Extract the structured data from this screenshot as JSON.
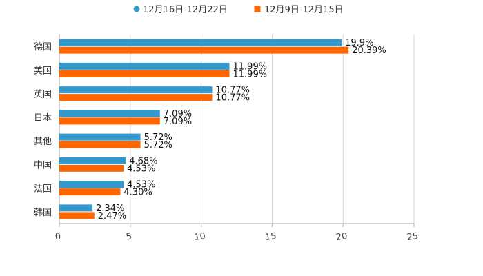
{
  "chart_data": {
    "type": "bar",
    "orientation": "horizontal",
    "categories": [
      "德国",
      "美国",
      "英国",
      "日本",
      "其他",
      "中国",
      "法国",
      "韩国"
    ],
    "series": [
      {
        "name": "12月16日-12月22日",
        "color": "#3399cc",
        "values": [
          19.9,
          11.99,
          10.77,
          7.09,
          5.72,
          4.68,
          4.53,
          2.34
        ],
        "labels": [
          "19.9%",
          "11.99%",
          "10.77%",
          "7.09%",
          "5.72%",
          "4.68%",
          "4.53%",
          "2.34%"
        ]
      },
      {
        "name": "12月9日-12月15日",
        "color": "#ff6600",
        "values": [
          20.39,
          11.99,
          10.77,
          7.09,
          5.72,
          4.53,
          4.3,
          2.47
        ],
        "labels": [
          "20.39%",
          "11.99%",
          "10.77%",
          "7.09%",
          "5.72%",
          "4.53%",
          "4.30%",
          "2.47%"
        ]
      }
    ],
    "xlim": [
      0,
      25
    ],
    "xticks": [
      "0",
      "5",
      "10",
      "15",
      "20",
      "25"
    ],
    "grid": true,
    "legend": "top-center",
    "title": "",
    "xlabel": "",
    "ylabel": ""
  }
}
